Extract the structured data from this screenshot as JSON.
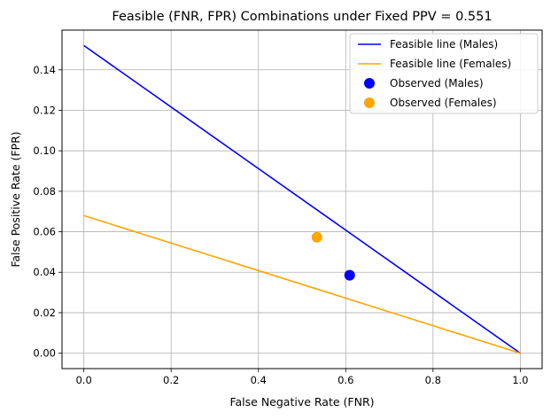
{
  "chart_data": {
    "type": "line",
    "title": "Feasible (FNR, FPR) Combinations under Fixed PPV = 0.551",
    "xlabel": "False Negative Rate (FNR)",
    "ylabel": "False Positive Rate (FPR)",
    "xlim": [
      -0.05,
      1.05
    ],
    "ylim": [
      -0.0076,
      0.1596
    ],
    "xticks": [
      0.0,
      0.2,
      0.4,
      0.6,
      0.8,
      1.0
    ],
    "xtick_labels": [
      "0.0",
      "0.2",
      "0.4",
      "0.6",
      "0.8",
      "1.0"
    ],
    "yticks": [
      0.0,
      0.02,
      0.04,
      0.06,
      0.08,
      0.1,
      0.12,
      0.14
    ],
    "ytick_labels": [
      "0.00",
      "0.02",
      "0.04",
      "0.06",
      "0.08",
      "0.10",
      "0.12",
      "0.14"
    ],
    "grid": true,
    "legend_position": "top-right",
    "series": [
      {
        "name": "Feasible line (Males)",
        "kind": "line",
        "color": "#0000ff",
        "x": [
          0.0,
          1.0
        ],
        "y": [
          0.152,
          0.0
        ]
      },
      {
        "name": "Feasible line (Females)",
        "kind": "line",
        "color": "#ffa500",
        "x": [
          0.0,
          1.0
        ],
        "y": [
          0.068,
          0.0
        ]
      },
      {
        "name": "Observed (Males)",
        "kind": "point",
        "color": "#0000ff",
        "x": [
          0.609
        ],
        "y": [
          0.0385
        ]
      },
      {
        "name": "Observed (Females)",
        "kind": "point",
        "color": "#ffa500",
        "x": [
          0.534
        ],
        "y": [
          0.0573
        ]
      }
    ]
  }
}
